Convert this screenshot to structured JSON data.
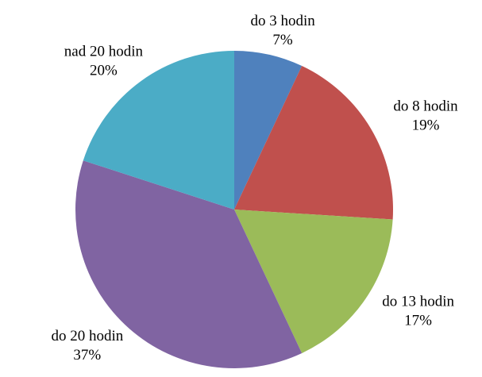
{
  "chart_data": {
    "type": "pie",
    "categories": [
      "do 3 hodin",
      "do 8 hodin",
      "do 13 hodin",
      "do 20 hodin",
      "nad 20 hodin"
    ],
    "values": [
      7,
      19,
      17,
      37,
      20
    ],
    "value_labels": [
      "7%",
      "19%",
      "17%",
      "37%",
      "20%"
    ],
    "colors": [
      "#4f81bd",
      "#c0504d",
      "#9bbb59",
      "#8064a2",
      "#4bacc6"
    ]
  }
}
